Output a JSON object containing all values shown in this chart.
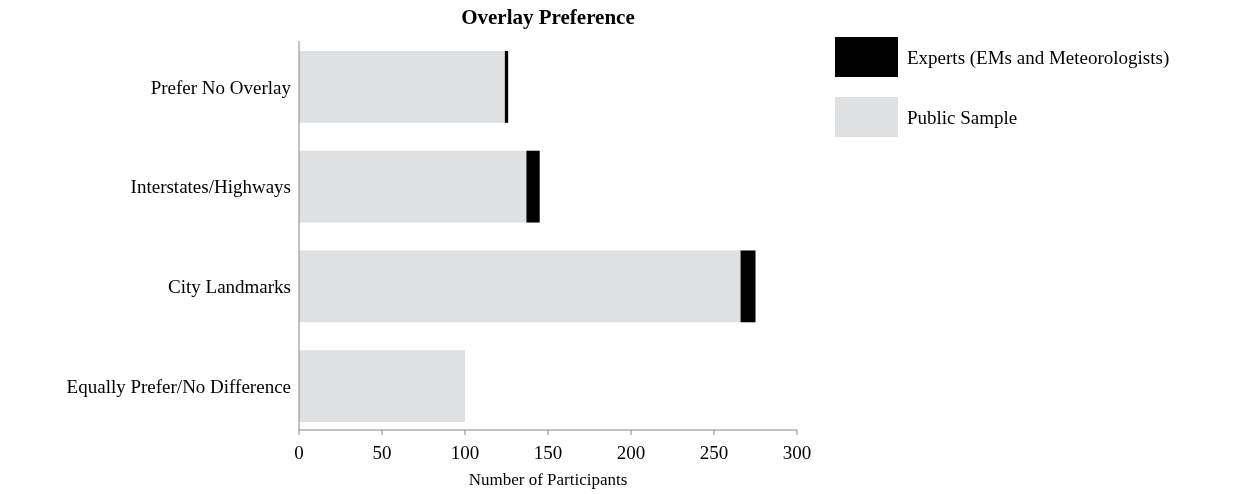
{
  "chart_data": {
    "type": "bar",
    "orientation": "horizontal",
    "stacked": true,
    "title": "Overlay Preference",
    "xlabel": "Number of Participants",
    "categories": [
      "Prefer No Overlay",
      "Interstates/Highways",
      "City Landmarks",
      "Equally Prefer/No Difference"
    ],
    "series": [
      {
        "name": "Public Sample",
        "color": "#dfe0e2",
        "values": [
          124,
          137,
          266,
          100
        ]
      },
      {
        "name": "Experts (EMs and Meteorologists)",
        "color": "#000000",
        "values": [
          2,
          8,
          9,
          0
        ]
      }
    ],
    "xlim": [
      0,
      300
    ],
    "xticks": [
      0,
      50,
      100,
      150,
      200,
      250,
      300
    ],
    "legend": "top right",
    "grid": false
  }
}
